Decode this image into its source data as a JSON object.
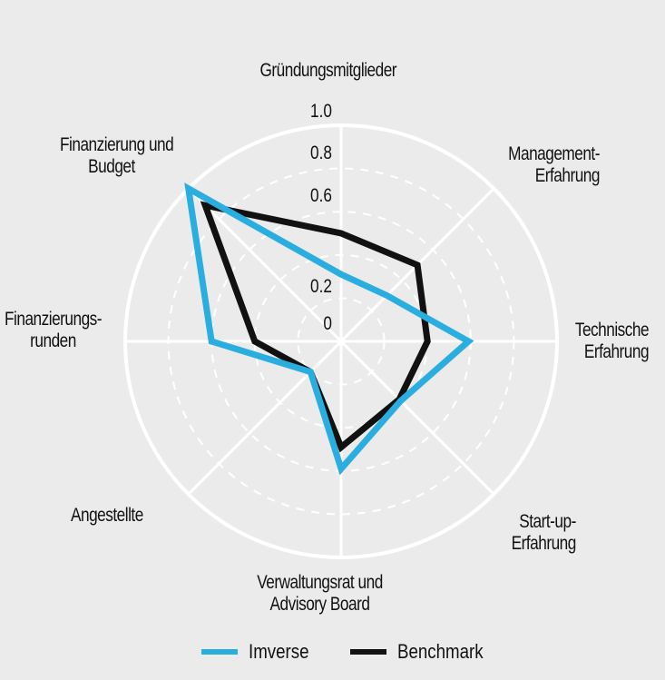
{
  "chart_data": {
    "type": "radar",
    "title": "",
    "axes": [
      "Gründungsmitglieder",
      "Management-Erfahrung",
      "Technische Erfahrung",
      "Start-up-Erfahrung",
      "Verwaltungsrat und Advisory Board",
      "Angestellte",
      "Finanzierungsrunden",
      "Finanzierung und Budget"
    ],
    "series": [
      {
        "name": "Imverse",
        "color": "#2aaee0",
        "values": [
          0.31,
          0.3,
          0.59,
          0.39,
          0.59,
          0.2,
          0.6,
          1.0
        ]
      },
      {
        "name": "Benchmark",
        "color": "#111111",
        "values": [
          0.5,
          0.5,
          0.4,
          0.38,
          0.49,
          0.2,
          0.4,
          0.89
        ]
      }
    ],
    "radial_range": [
      0,
      1.0
    ],
    "radial_ticks": [
      0,
      0.2,
      0.6,
      0.8,
      1.0
    ],
    "grid": true,
    "legend_position": "bottom"
  },
  "axis_labels": [
    {
      "lines": [
        "Gründungsmitglieder"
      ]
    },
    {
      "lines": [
        "Management-",
        "Erfahrung"
      ]
    },
    {
      "lines": [
        "Technische",
        "Erfahrung"
      ]
    },
    {
      "lines": [
        "Start-up-",
        "Erfahrung"
      ]
    },
    {
      "lines": [
        "Verwaltungsrat und",
        "Advisory Board"
      ]
    },
    {
      "lines": [
        "Angestellte"
      ]
    },
    {
      "lines": [
        "Finanzierungs-",
        "runden"
      ]
    },
    {
      "lines": [
        "Finanzierung und",
        "Budget"
      ]
    }
  ],
  "tick_labels": [
    "1.0",
    "0.8",
    "0.6",
    "0.2",
    "0"
  ],
  "legend": [
    {
      "label": "Imverse",
      "color": "#2aaee0"
    },
    {
      "label": "Benchmark",
      "color": "#111111"
    }
  ],
  "colors": {
    "background": "#ebebeb",
    "grid": "#ffffff"
  }
}
